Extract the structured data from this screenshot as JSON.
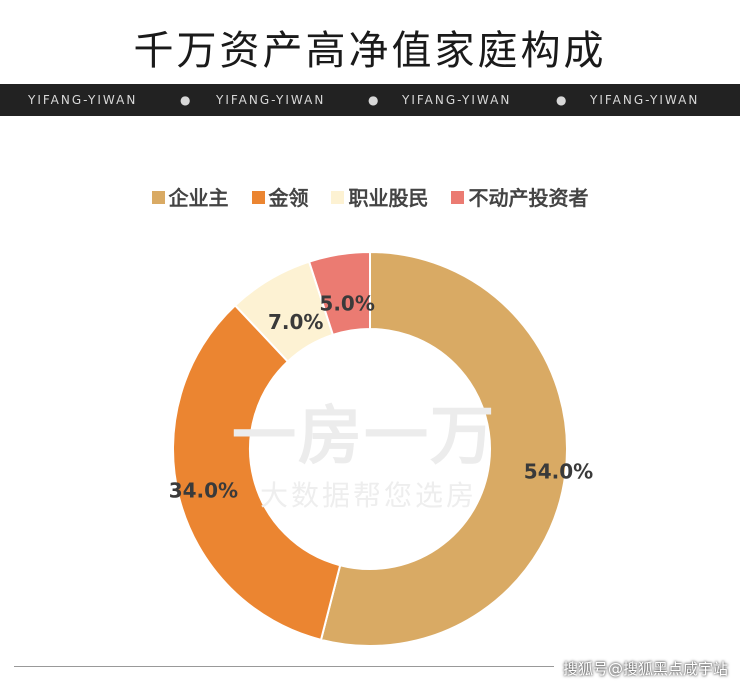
{
  "header": {
    "title": "千万资产高净值家庭构成",
    "banner_items": [
      "YIFANG-YIWAN",
      "YIFANG-YIWAN",
      "YIFANG-YIWAN",
      "YIFANG-YIWAN"
    ],
    "banner_separator": "●"
  },
  "watermark": {
    "main": "一房一万",
    "sub": "大数据帮您选房"
  },
  "footer": {
    "text": "搜狐号@搜狐黑点咸宇站"
  },
  "chart_data": {
    "type": "pie",
    "variant": "donut",
    "title": "千万资产高净值家庭构成",
    "legend_position": "top",
    "categories": [
      "企业主",
      "金领",
      "职业股民",
      "不动产投资者"
    ],
    "values": [
      54.0,
      34.0,
      7.0,
      5.0
    ],
    "labels": [
      "54.0%",
      "34.0%",
      "7.0%",
      "5.0%"
    ],
    "colors": [
      "#D9AA64",
      "#EB8531",
      "#FDF2D3",
      "#EB7B72"
    ]
  }
}
